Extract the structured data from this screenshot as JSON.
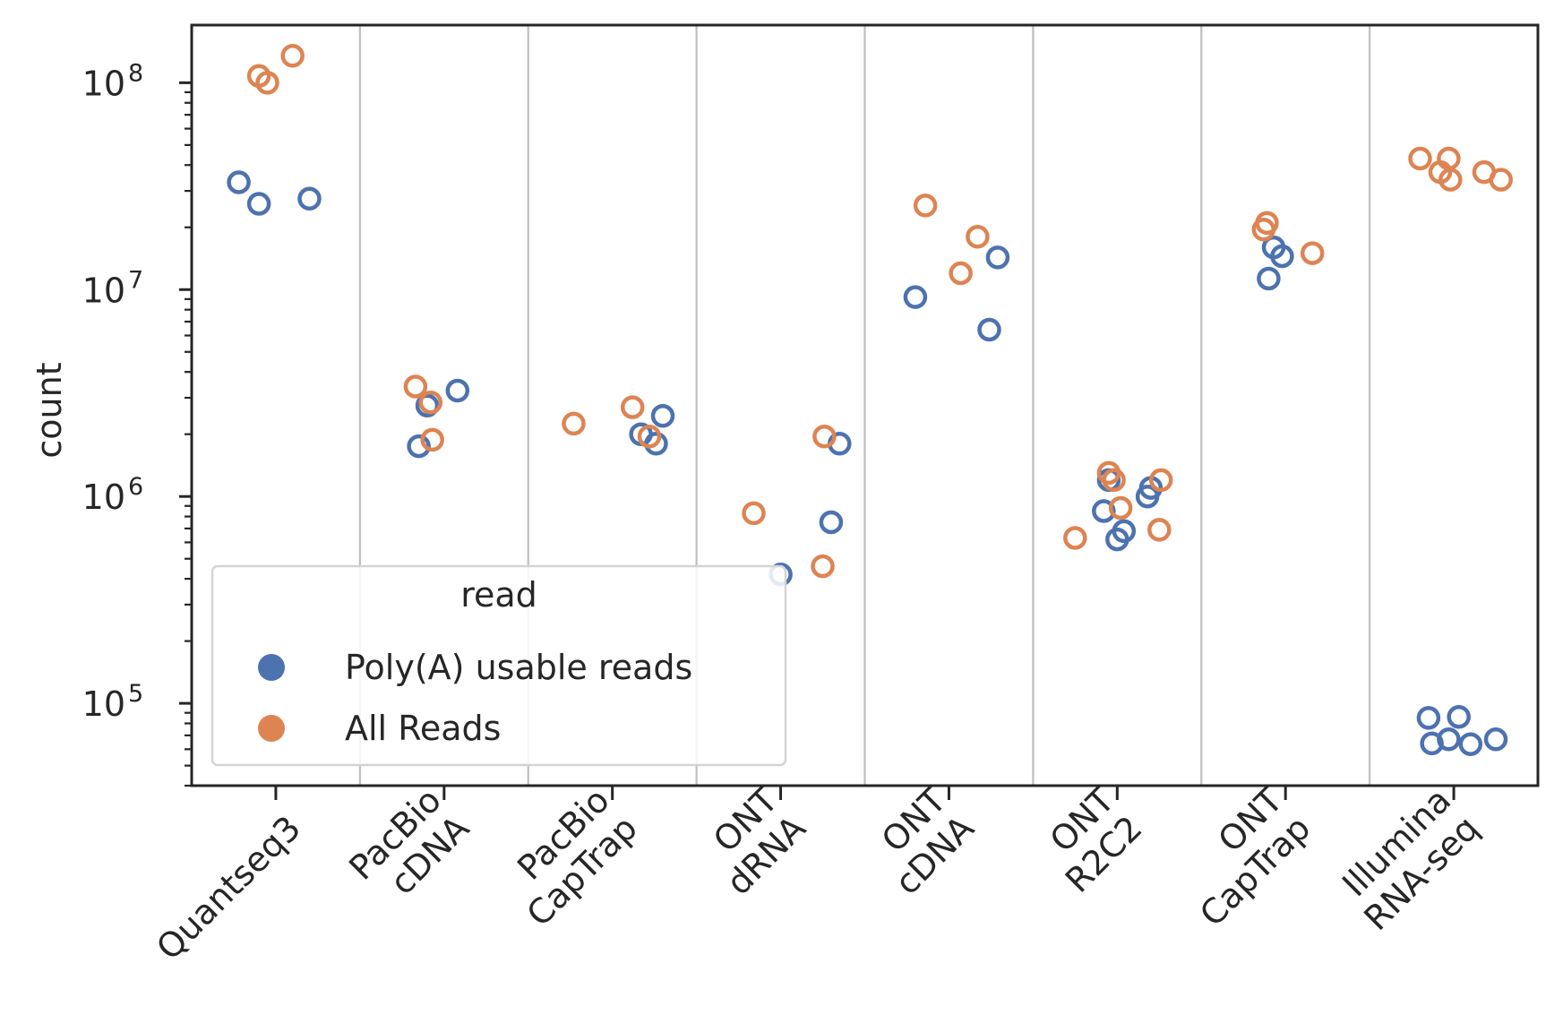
{
  "chart_data": {
    "type": "scatter",
    "ylabel": "count",
    "yscale": "log",
    "ylim": [
      40000,
      190000000
    ],
    "y_ticks": [
      {
        "value": 100000,
        "base": "10",
        "exp": "5"
      },
      {
        "value": 1000000,
        "base": "10",
        "exp": "6"
      },
      {
        "value": 10000000,
        "base": "10",
        "exp": "7"
      },
      {
        "value": 100000000,
        "base": "10",
        "exp": "8"
      }
    ],
    "categories": [
      [
        "Quantseq3"
      ],
      [
        "PacBio",
        "cDNA"
      ],
      [
        "PacBio",
        "CapTrap"
      ],
      [
        "ONT",
        "dRNA"
      ],
      [
        "ONT",
        "cDNA"
      ],
      [
        "ONT",
        "R2C2"
      ],
      [
        "ONT",
        "CapTrap"
      ],
      [
        "Illumina",
        "RNA-seq"
      ]
    ],
    "legend": {
      "title": "read",
      "placement": "lower-left",
      "entries": [
        "Poly(A) usable reads",
        "All Reads"
      ]
    },
    "series": [
      {
        "name": "Poly(A) usable reads",
        "color": "#4c72b0",
        "points": [
          [
            0,
            -0.22,
            33000000
          ],
          [
            0,
            -0.1,
            26000000
          ],
          [
            0,
            0.2,
            27500000
          ],
          [
            1,
            -0.15,
            1750000
          ],
          [
            1,
            -0.1,
            2750000
          ],
          [
            1,
            0.08,
            3250000
          ],
          [
            2,
            0.17,
            2000000
          ],
          [
            2,
            0.26,
            1800000
          ],
          [
            2,
            0.3,
            2450000
          ],
          [
            3,
            0.0,
            420000
          ],
          [
            3,
            0.3,
            750000
          ],
          [
            3,
            0.35,
            1800000
          ],
          [
            4,
            -0.2,
            9200000
          ],
          [
            4,
            0.24,
            6400000
          ],
          [
            4,
            0.29,
            14300000
          ],
          [
            5,
            -0.08,
            850000
          ],
          [
            5,
            0.0,
            620000
          ],
          [
            5,
            0.04,
            680000
          ],
          [
            5,
            0.18,
            1000000
          ],
          [
            5,
            0.2,
            1100000
          ],
          [
            5,
            -0.05,
            1200000
          ],
          [
            6,
            -0.1,
            11300000
          ],
          [
            6,
            -0.07,
            16000000
          ],
          [
            6,
            -0.02,
            14500000
          ],
          [
            7,
            -0.15,
            85000
          ],
          [
            7,
            -0.13,
            64000
          ],
          [
            7,
            -0.03,
            67000
          ],
          [
            7,
            0.03,
            86000
          ],
          [
            7,
            0.1,
            63500
          ],
          [
            7,
            0.25,
            67000
          ]
        ]
      },
      {
        "name": "All Reads",
        "color": "#dd8452",
        "points": [
          [
            0,
            -0.1,
            108000000
          ],
          [
            0,
            -0.05,
            100000000
          ],
          [
            0,
            0.1,
            135000000
          ],
          [
            1,
            -0.17,
            3400000
          ],
          [
            1,
            -0.08,
            2850000
          ],
          [
            1,
            -0.07,
            1880000
          ],
          [
            2,
            -0.23,
            2250000
          ],
          [
            2,
            0.12,
            2700000
          ],
          [
            2,
            0.22,
            1950000
          ],
          [
            3,
            -0.16,
            830000
          ],
          [
            3,
            0.25,
            460000
          ],
          [
            3,
            0.26,
            1950000
          ],
          [
            4,
            -0.14,
            25500000
          ],
          [
            4,
            0.07,
            12000000
          ],
          [
            4,
            0.17,
            18000000
          ],
          [
            5,
            -0.25,
            630000
          ],
          [
            5,
            -0.05,
            1300000
          ],
          [
            5,
            -0.02,
            1200000
          ],
          [
            5,
            0.02,
            880000
          ],
          [
            5,
            0.25,
            690000
          ],
          [
            5,
            0.26,
            1200000
          ],
          [
            6,
            -0.13,
            19500000
          ],
          [
            6,
            -0.11,
            21000000
          ],
          [
            6,
            0.16,
            15000000
          ],
          [
            7,
            -0.2,
            43000000
          ],
          [
            7,
            -0.08,
            37000000
          ],
          [
            7,
            -0.03,
            43000000
          ],
          [
            7,
            -0.02,
            34000000
          ],
          [
            7,
            0.18,
            37000000
          ],
          [
            7,
            0.28,
            34000000
          ]
        ]
      }
    ]
  }
}
